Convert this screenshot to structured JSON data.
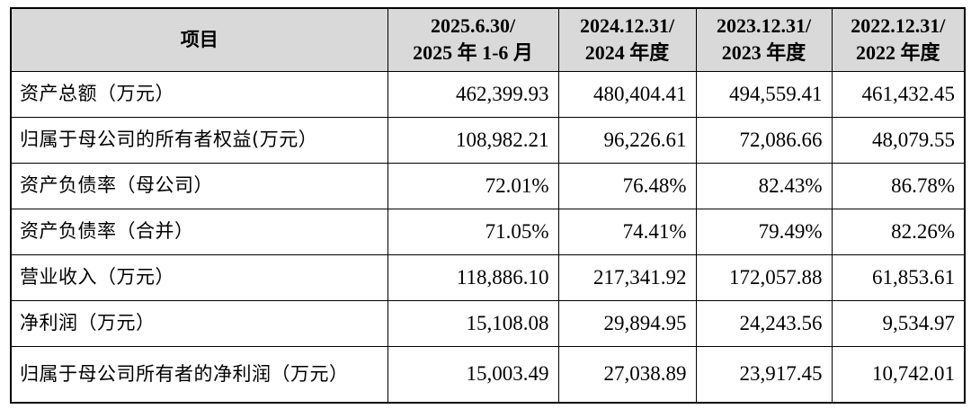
{
  "table": {
    "header": {
      "item": "项目",
      "columns": [
        {
          "line1": "2025.6.30/",
          "line2": "2025 年 1-6 月"
        },
        {
          "line1": "2024.12.31/",
          "line2": "2024 年度"
        },
        {
          "line1": "2023.12.31/",
          "line2": "2023 年度"
        },
        {
          "line1": "2022.12.31/",
          "line2": "2022 年度"
        }
      ]
    },
    "rows": [
      {
        "label": "资产总额（万元）",
        "values": [
          "462,399.93",
          "480,404.41",
          "494,559.41",
          "461,432.45"
        ]
      },
      {
        "label": "归属于母公司的所有者权益(万元）",
        "values": [
          "108,982.21",
          "96,226.61",
          "72,086.66",
          "48,079.55"
        ]
      },
      {
        "label": "资产负债率（母公司）",
        "values": [
          "72.01%",
          "76.48%",
          "82.43%",
          "86.78%"
        ]
      },
      {
        "label": "资产负债率（合并）",
        "values": [
          "71.05%",
          "74.41%",
          "79.49%",
          "82.26%"
        ]
      },
      {
        "label": "营业收入（万元）",
        "values": [
          "118,886.10",
          "217,341.92",
          "172,057.88",
          "61,853.61"
        ]
      },
      {
        "label": "净利润（万元）",
        "values": [
          "15,108.08",
          "29,894.95",
          "24,243.56",
          "9,534.97"
        ]
      },
      {
        "label": "归属于母公司所有者的净利润（万元）",
        "values": [
          "15,003.49",
          "27,038.89",
          "23,917.45",
          "10,742.01"
        ]
      }
    ]
  }
}
